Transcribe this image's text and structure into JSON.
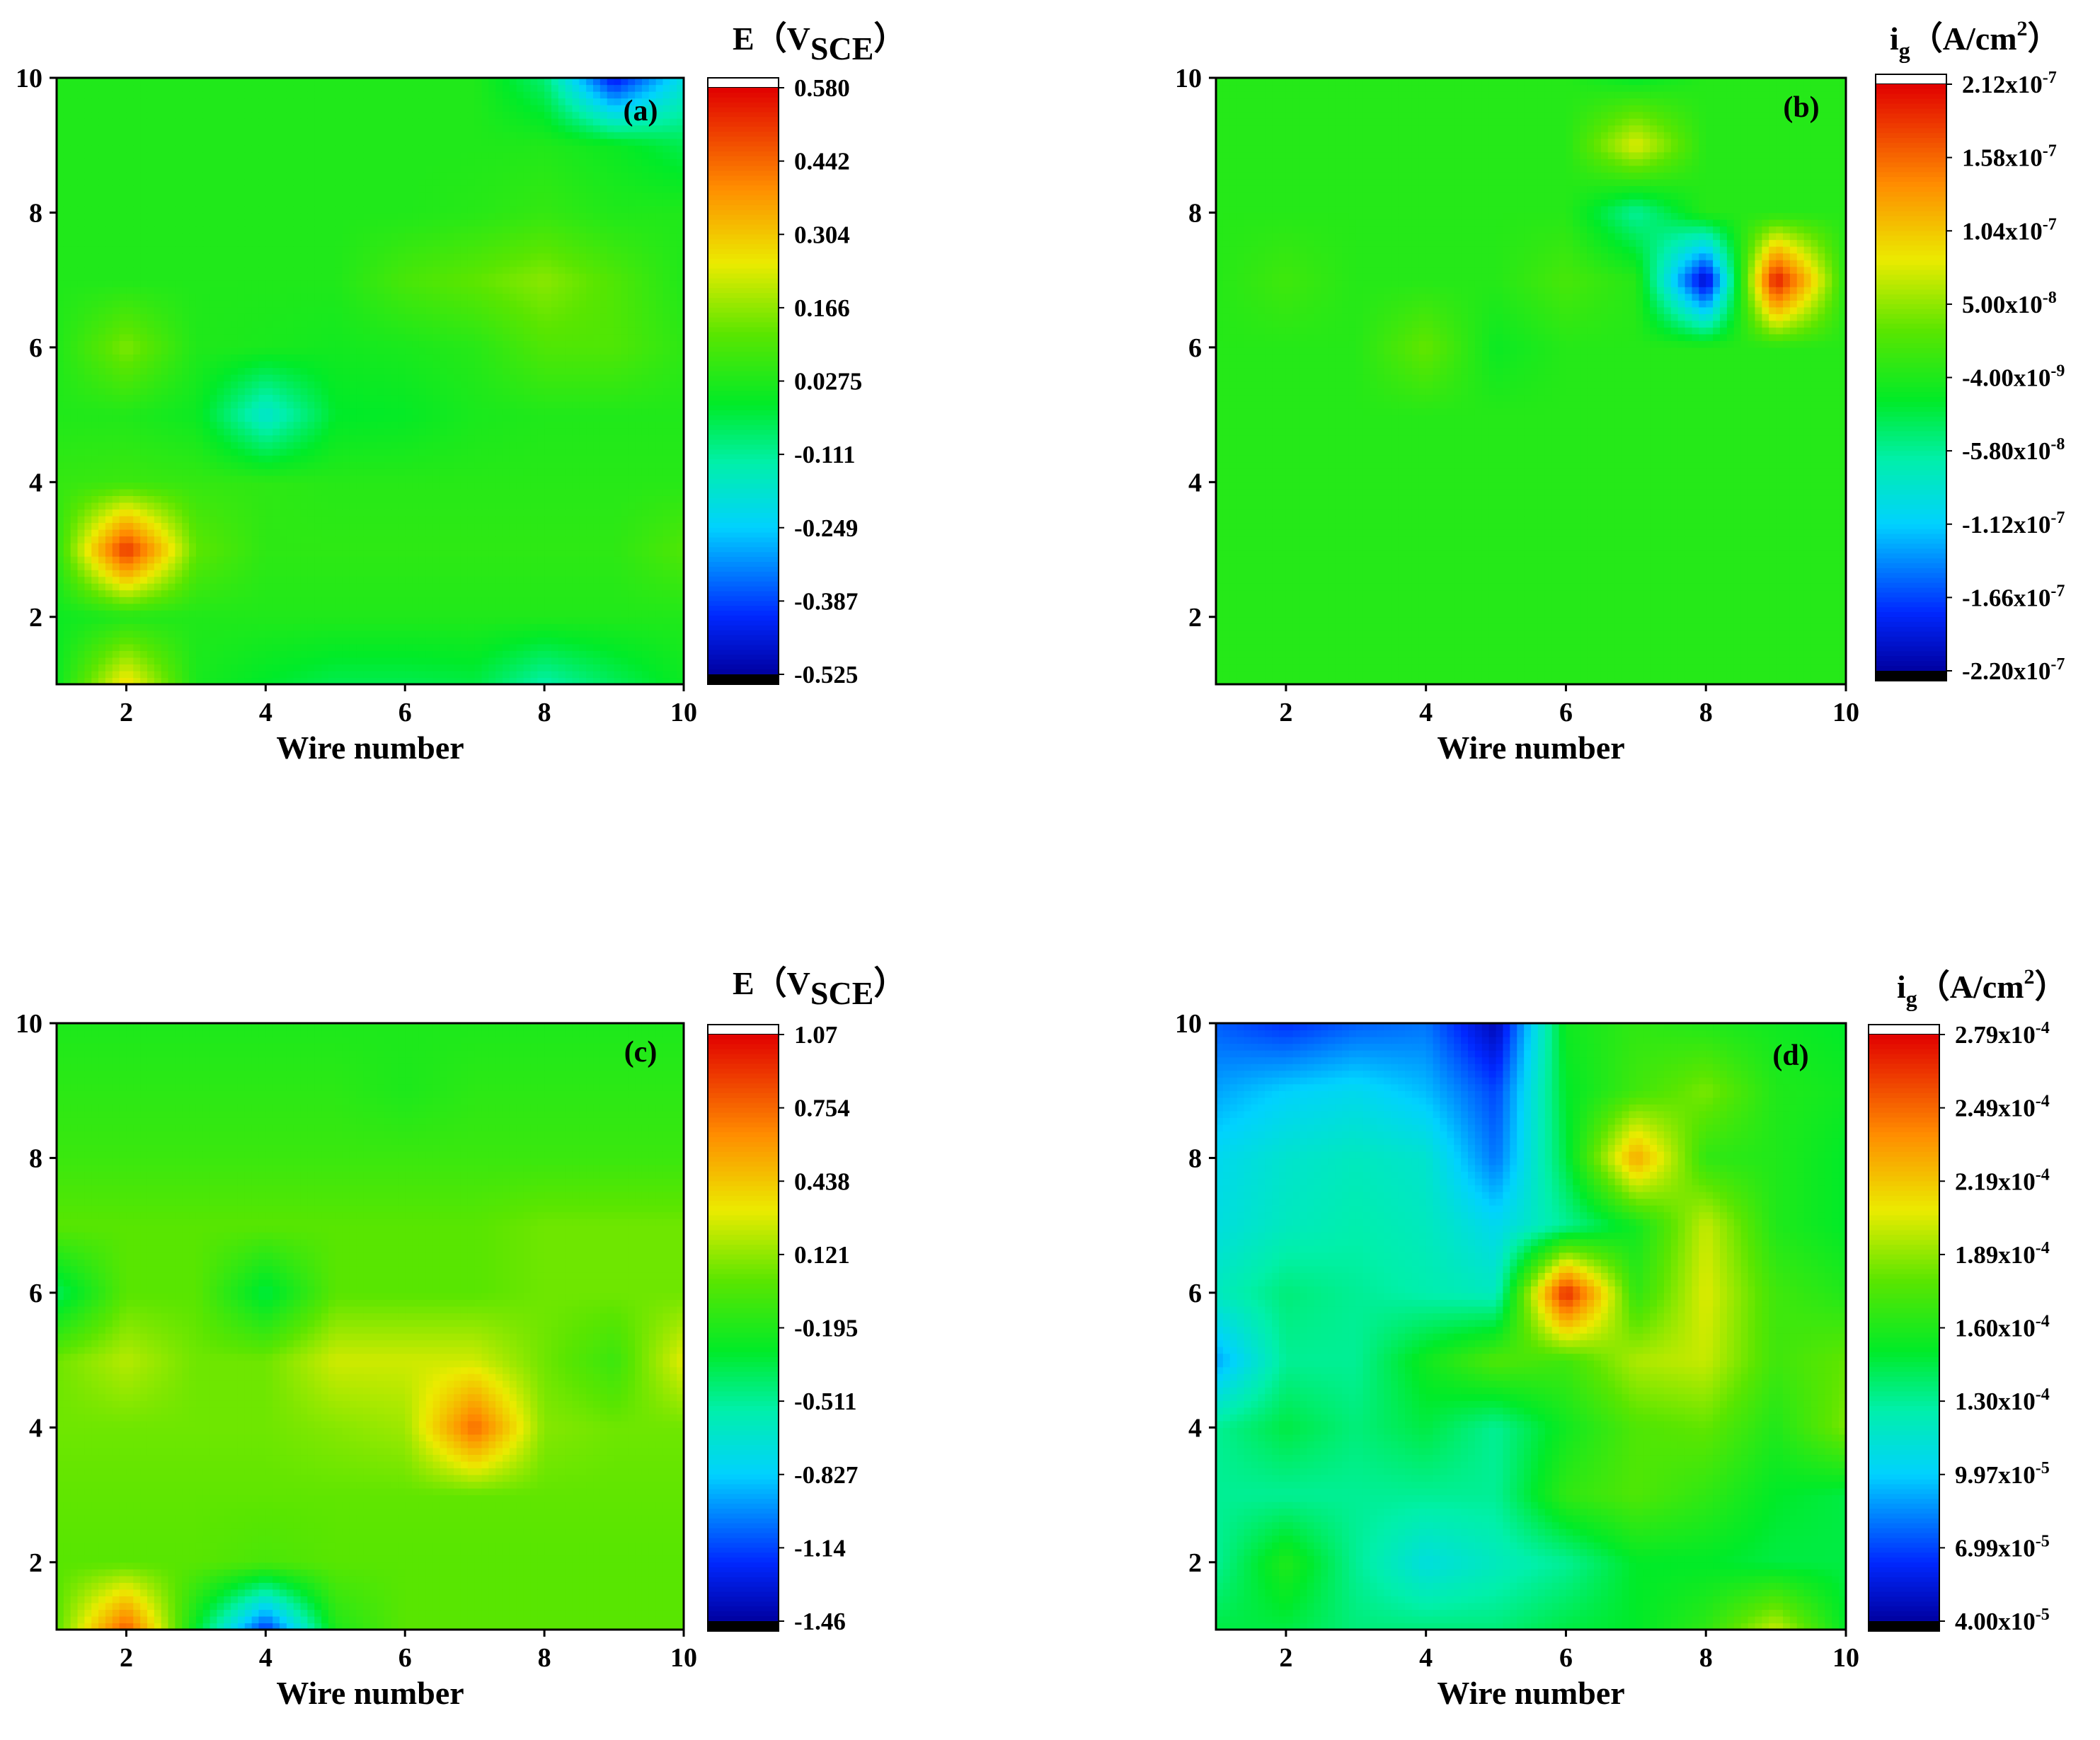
{
  "chart_data": [
    {
      "type": "heatmap",
      "panel_label": "(a)",
      "xlabel": "Wire number",
      "ylabel": "",
      "xlim": [
        1,
        10
      ],
      "ylim": [
        1,
        10
      ],
      "x_ticks": [
        "2",
        "4",
        "6",
        "8",
        "10"
      ],
      "y_ticks": [
        "2",
        "4",
        "6",
        "8",
        "10"
      ],
      "colorbar": {
        "title_main": "E（V",
        "title_sub": "SCE",
        "title_end": "）",
        "range": [
          -0.525,
          0.58
        ],
        "tick_labels": [
          "0.580",
          "0.442",
          "0.304",
          "0.166",
          "0.0275",
          "-0.111",
          "-0.249",
          "-0.387",
          "-0.525"
        ]
      },
      "x": [
        1,
        2,
        3,
        4,
        5,
        6,
        7,
        8,
        9,
        10
      ],
      "y": [
        1,
        2,
        3,
        4,
        5,
        6,
        7,
        8,
        9,
        10
      ],
      "z": [
        [
          0.0,
          0.28,
          0.02,
          -0.02,
          -0.05,
          -0.05,
          -0.04,
          -0.13,
          -0.06,
          0.0
        ],
        [
          0.0,
          0.03,
          0.03,
          0.03,
          0.03,
          0.03,
          0.03,
          0.03,
          0.03,
          0.03
        ],
        [
          0.05,
          0.52,
          0.12,
          0.05,
          0.05,
          0.05,
          0.05,
          0.05,
          0.05,
          0.1
        ],
        [
          0.06,
          0.07,
          0.06,
          0.05,
          0.04,
          0.04,
          0.04,
          0.04,
          0.04,
          0.04
        ],
        [
          0.03,
          0.03,
          0.0,
          -0.18,
          -0.02,
          -0.01,
          0.02,
          0.03,
          0.03,
          0.03
        ],
        [
          0.03,
          0.15,
          0.03,
          0.02,
          0.01,
          0.02,
          0.04,
          0.1,
          0.1,
          0.05
        ],
        [
          0.03,
          0.03,
          0.03,
          0.03,
          0.03,
          0.09,
          0.12,
          0.16,
          0.1,
          0.03
        ],
        [
          0.03,
          0.03,
          0.03,
          0.03,
          0.03,
          0.03,
          0.04,
          0.06,
          0.03,
          0.03
        ],
        [
          0.03,
          0.03,
          0.03,
          0.03,
          0.03,
          0.03,
          0.03,
          0.03,
          0.0,
          -0.05
        ],
        [
          0.03,
          0.03,
          0.03,
          0.03,
          0.03,
          0.03,
          0.03,
          -0.08,
          -0.45,
          -0.2
        ]
      ]
    },
    {
      "type": "heatmap",
      "panel_label": "(b)",
      "xlabel": "Wire number",
      "ylabel": "",
      "xlim": [
        1,
        10
      ],
      "ylim": [
        1,
        10
      ],
      "x_ticks": [
        "2",
        "4",
        "6",
        "8",
        "10"
      ],
      "y_ticks": [
        "2",
        "4",
        "6",
        "8",
        "10"
      ],
      "colorbar": {
        "title_main": "i",
        "title_sub": "g",
        "title_end": "（A/cm",
        "title_sup": "2",
        "title_close": "）",
        "range": [
          -2.2e-07,
          2.12e-07
        ],
        "tick_labels": [
          "2.12x10-7",
          "1.58x10-7",
          "1.04x10-7",
          "5.00x10-8",
          "-4.00x10-9",
          "-5.80x10-8",
          "-1.12x10-7",
          "-1.66x10-7",
          "-2.20x10-7"
        ]
      },
      "x": [
        1,
        2,
        3,
        4,
        5,
        6,
        7,
        8,
        9,
        10
      ],
      "y": [
        1,
        2,
        3,
        4,
        5,
        6,
        7,
        8,
        9,
        10
      ],
      "z": [
        [
          0,
          0,
          0,
          0,
          0,
          0,
          0,
          0,
          0,
          0
        ],
        [
          0,
          0,
          0,
          0,
          0,
          0,
          0,
          0,
          0,
          0
        ],
        [
          0,
          0,
          0,
          0,
          0,
          0,
          0,
          0,
          0,
          0
        ],
        [
          0,
          0,
          0,
          0,
          0,
          0,
          0,
          0,
          0,
          0
        ],
        [
          0,
          0,
          0,
          0,
          0,
          0,
          0,
          0,
          0,
          0
        ],
        [
          0,
          0,
          0,
          3.5e-08,
          -1.5e-08,
          0,
          0,
          0,
          0,
          0
        ],
        [
          0,
          1.5e-08,
          0,
          0,
          0,
          2e-08,
          0,
          -2.1e-07,
          2.05e-07,
          0
        ],
        [
          0,
          0,
          0,
          0,
          0,
          0,
          -6e-08,
          0,
          0,
          0
        ],
        [
          0,
          0,
          0,
          0,
          0,
          0,
          8e-08,
          0,
          0,
          0
        ],
        [
          0,
          0,
          0,
          0,
          0,
          0,
          -2e-08,
          0,
          0,
          0
        ]
      ]
    },
    {
      "type": "heatmap",
      "panel_label": "(c)",
      "xlabel": "Wire number",
      "ylabel": "",
      "xlim": [
        1,
        10
      ],
      "ylim": [
        1,
        10
      ],
      "x_ticks": [
        "2",
        "4",
        "6",
        "8",
        "10"
      ],
      "y_ticks": [
        "2",
        "4",
        "6",
        "8",
        "10"
      ],
      "colorbar": {
        "title_main": "E（V",
        "title_sub": "SCE",
        "title_end": "）",
        "range": [
          -1.46,
          1.07
        ],
        "tick_labels": [
          "1.07",
          "0.754",
          "0.438",
          "0.121",
          "-0.195",
          "-0.511",
          "-0.827",
          "-1.14",
          "-1.46"
        ]
      },
      "x": [
        1,
        2,
        3,
        4,
        5,
        6,
        7,
        8,
        9,
        10
      ],
      "y": [
        1,
        2,
        3,
        4,
        5,
        6,
        7,
        8,
        9,
        10
      ],
      "z": [
        [
          0.0,
          0.8,
          -0.3,
          -1.2,
          -0.2,
          0.0,
          0.0,
          0.0,
          0.0,
          0.0
        ],
        [
          0.0,
          0.0,
          0.0,
          -0.05,
          0.0,
          0.0,
          0.0,
          0.0,
          0.0,
          0.0
        ],
        [
          0.02,
          0.02,
          0.02,
          0.02,
          0.02,
          0.02,
          0.02,
          0.02,
          0.02,
          0.02
        ],
        [
          0.05,
          0.05,
          0.05,
          0.05,
          0.1,
          0.15,
          0.75,
          0.1,
          0.05,
          0.05
        ],
        [
          0.05,
          0.2,
          0.05,
          0.05,
          0.25,
          0.25,
          0.25,
          0.05,
          -0.1,
          0.3
        ],
        [
          -0.4,
          0.0,
          0.0,
          -0.35,
          0.0,
          0.0,
          0.0,
          0.05,
          0.05,
          0.05
        ],
        [
          0.0,
          0.0,
          0.0,
          0.0,
          0.0,
          0.0,
          0.0,
          0.05,
          0.05,
          0.05
        ],
        [
          -0.1,
          -0.1,
          -0.1,
          -0.1,
          -0.1,
          -0.1,
          -0.1,
          -0.1,
          -0.1,
          -0.1
        ],
        [
          -0.15,
          -0.15,
          -0.15,
          -0.15,
          -0.15,
          -0.2,
          -0.15,
          -0.15,
          -0.15,
          -0.15
        ],
        [
          -0.2,
          -0.2,
          -0.2,
          -0.2,
          -0.2,
          -0.2,
          -0.2,
          -0.2,
          -0.2,
          -0.2
        ]
      ]
    },
    {
      "type": "heatmap",
      "panel_label": "(d)",
      "xlabel": "Wire number",
      "ylabel": "",
      "xlim": [
        1,
        10
      ],
      "ylim": [
        1,
        10
      ],
      "x_ticks": [
        "2",
        "4",
        "6",
        "8",
        "10"
      ],
      "y_ticks": [
        "2",
        "4",
        "6",
        "8",
        "10"
      ],
      "colorbar": {
        "title_main": "i",
        "title_sub": "g",
        "title_end": "（A/cm",
        "title_sup": "2",
        "title_close": "）",
        "range": [
          4e-05,
          0.000279
        ],
        "tick_labels": [
          "2.79x10-4",
          "2.49x10-4",
          "2.19x10-4",
          "1.89x10-4",
          "1.60x10-4",
          "1.30x10-4",
          "9.97x10-5",
          "6.99x10-5",
          "4.00x10-5"
        ]
      },
      "x": [
        1,
        2,
        3,
        4,
        5,
        6,
        7,
        8,
        9,
        10
      ],
      "y": [
        1,
        2,
        3,
        4,
        5,
        6,
        7,
        8,
        9,
        10
      ],
      "z": [
        [
          0.000145,
          0.000145,
          0.000135,
          0.000135,
          0.000135,
          0.000145,
          0.00015,
          0.000165,
          0.0002,
          0.00015
        ],
        [
          0.00013,
          0.00016,
          0.00013,
          0.00011,
          0.00012,
          0.00013,
          0.00015,
          0.00015,
          0.000145,
          0.000145
        ],
        [
          0.00013,
          0.00013,
          0.00013,
          0.00013,
          0.00013,
          0.000165,
          0.000175,
          0.000165,
          0.00015,
          0.000145
        ],
        [
          0.00013,
          0.000145,
          0.000135,
          0.000145,
          0.00013,
          0.000155,
          0.000175,
          0.00018,
          0.00016,
          0.000185
        ],
        [
          9e-05,
          0.00013,
          0.00013,
          0.000155,
          0.000175,
          0.00017,
          0.000195,
          0.0002,
          0.00017,
          0.00018
        ],
        [
          0.00012,
          0.000135,
          0.00013,
          0.000125,
          0.00012,
          0.00027,
          0.000165,
          0.000205,
          0.00017,
          0.00016
        ],
        [
          0.00011,
          0.00012,
          0.000125,
          0.00012,
          0.000105,
          0.00013,
          0.000155,
          0.0002,
          0.00016,
          0.00015
        ],
        [
          0.000105,
          0.000115,
          0.00012,
          0.000115,
          8e-05,
          0.000145,
          0.00023,
          0.000165,
          0.00016,
          0.00015
        ],
        [
          9e-05,
          0.0001,
          0.000105,
          9.5e-05,
          7e-05,
          0.00015,
          0.00017,
          0.000185,
          0.00016,
          0.000155
        ],
        [
          7.5e-05,
          6.5e-05,
          7.5e-05,
          8e-05,
          4.5e-05,
          0.000155,
          0.000165,
          0.00016,
          0.000155,
          0.00015
        ]
      ]
    }
  ]
}
